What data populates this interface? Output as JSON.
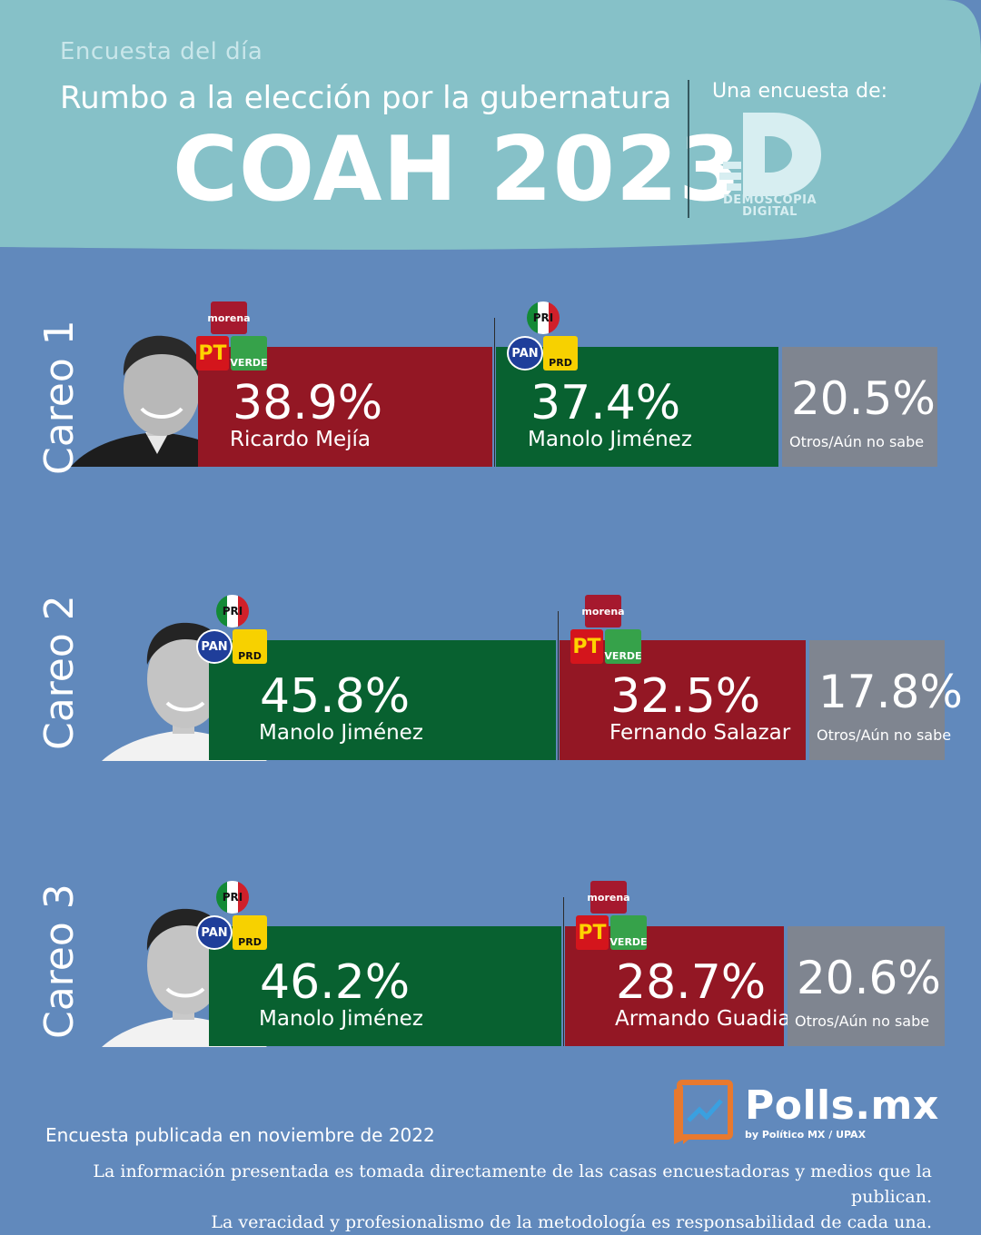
{
  "header": {
    "kicker": "Encuesta del día",
    "subtitle": "Rumbo a la elección por la gubernatura",
    "title": "COAH 2023",
    "pollster_label": "Una encuesta de:",
    "pollster_name_line1": "DEMOSCOPIA",
    "pollster_name_line2": "DIGITAL"
  },
  "chart_data": {
    "type": "bar",
    "orientation": "horizontal-stacked",
    "unit": "%",
    "careos": [
      {
        "label": "Careo 1",
        "candidates": [
          {
            "name": "Ricardo Mejía",
            "value": 38.9,
            "display": "38.9%",
            "color": "#931724",
            "parties": [
              "morena",
              "PT",
              "VERDE"
            ]
          },
          {
            "name": "Manolo Jiménez",
            "value": 37.4,
            "display": "37.4%",
            "color": "#086130",
            "parties": [
              "PRI",
              "PAN",
              "PRD"
            ]
          }
        ],
        "others": {
          "label": "Otros/Aún no sabe",
          "value": 20.5,
          "display": "20.5%",
          "color": "#7f8590"
        }
      },
      {
        "label": "Careo 2",
        "candidates": [
          {
            "name": "Manolo Jiménez",
            "value": 45.8,
            "display": "45.8%",
            "color": "#086130",
            "parties": [
              "PRI",
              "PAN",
              "PRD"
            ]
          },
          {
            "name": "Fernando Salazar",
            "value": 32.5,
            "display": "32.5%",
            "color": "#931724",
            "parties": [
              "morena",
              "PT",
              "VERDE"
            ]
          }
        ],
        "others": {
          "label": "Otros/Aún no sabe",
          "value": 17.8,
          "display": "17.8%",
          "color": "#7f8590"
        }
      },
      {
        "label": "Careo 3",
        "candidates": [
          {
            "name": "Manolo Jiménez",
            "value": 46.2,
            "display": "46.2%",
            "color": "#086130",
            "parties": [
              "PRI",
              "PAN",
              "PRD"
            ]
          },
          {
            "name": "Armando Guadiana",
            "value": 28.7,
            "display": "28.7%",
            "color": "#931724",
            "parties": [
              "morena",
              "PT",
              "VERDE"
            ]
          }
        ],
        "others": {
          "label": "Otros/Aún no sabe",
          "value": 20.6,
          "display": "20.6%",
          "color": "#7f8590"
        }
      }
    ]
  },
  "parties": {
    "morena": "morena",
    "pt": "PT",
    "verde": "VERDE",
    "pri": "PRI",
    "pan": "PAN",
    "prd": "PRD"
  },
  "footer": {
    "date": "Encuesta publicada en noviembre de 2022",
    "note_line1": "La información presentada es tomada directamente de las casas encuestadoras y medios que la publican.",
    "note_line2": "La veracidad y profesionalismo de la metodología es responsabilidad de cada una."
  },
  "brand": {
    "name": "Polls.mx",
    "by": "by Político MX  /  UPAX"
  },
  "colors": {
    "background": "#6189bc",
    "header": "#86c1c8",
    "red": "#931724",
    "green": "#086130",
    "gray": "#7f8590",
    "brand_orange": "#e8792e"
  }
}
